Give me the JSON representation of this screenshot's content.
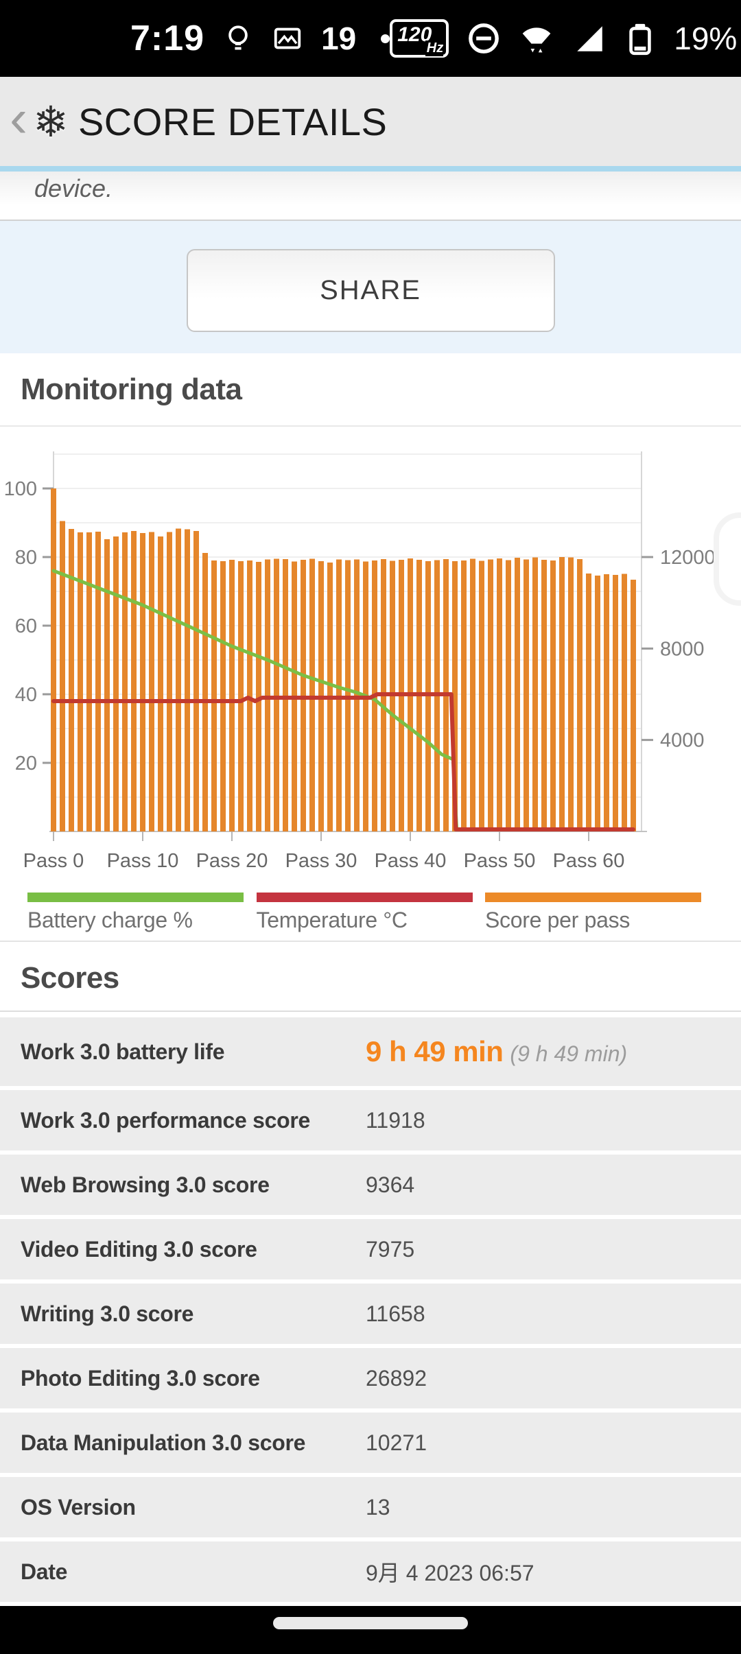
{
  "status_bar": {
    "time": "7:19",
    "notification_count": "19",
    "battery_percent": "19%",
    "refresh_rate": "120",
    "refresh_rate_unit": "Hz",
    "left_icons": [
      "lightbulb-icon",
      "photo-icon",
      "more-notifications-dot"
    ],
    "right_icons": [
      "refresh-rate-badge",
      "do-not-disturb-icon",
      "wifi-icon",
      "cellular-signal-icon",
      "battery-icon"
    ]
  },
  "header": {
    "back_glyph": "‹",
    "logo_glyph": "❄",
    "title": "SCORE DETAILS"
  },
  "intro": {
    "partial_text": "device."
  },
  "share": {
    "label": "SHARE"
  },
  "monitoring": {
    "title": "Monitoring data"
  },
  "chart_data": {
    "type": "bar",
    "title": "Monitoring data",
    "x_tick_labels": [
      "Pass 0",
      "Pass 10",
      "Pass 20",
      "Pass 30",
      "Pass 40",
      "Pass 50",
      "Pass 60"
    ],
    "left_axis": {
      "ticks": [
        20,
        40,
        60,
        80,
        100
      ],
      "range": [
        0,
        110
      ],
      "unit": "%  /  °C"
    },
    "right_axis": {
      "ticks": [
        4000,
        8000,
        12000
      ],
      "score_per_left_unit": 150
    },
    "grid": true,
    "legend_position": "bottom",
    "series": [
      {
        "name": "Score per pass",
        "type": "bar",
        "color": "#E5862B",
        "values": [
          15000,
          13575,
          13230,
          13080,
          13080,
          13110,
          12780,
          12900,
          13080,
          13140,
          13050,
          13095,
          12900,
          13095,
          13245,
          13215,
          13140,
          12180,
          11850,
          11820,
          11880,
          11820,
          11850,
          11790,
          11895,
          11925,
          11910,
          11805,
          11880,
          11925,
          11820,
          11760,
          11895,
          11865,
          11895,
          11805,
          11850,
          11910,
          11835,
          11880,
          11940,
          11880,
          11820,
          11865,
          11910,
          11820,
          11850,
          11925,
          11835,
          11895,
          11940,
          11865,
          11970,
          11895,
          11985,
          11880,
          11850,
          12000,
          11985,
          11910,
          11280,
          11190,
          11250,
          11220,
          11265,
          11010
        ]
      },
      {
        "name": "Battery charge %",
        "type": "line",
        "color": "#7CBF45",
        "points": [
          [
            0,
            76
          ],
          [
            5,
            71
          ],
          [
            10,
            66
          ],
          [
            15,
            60
          ],
          [
            20,
            54
          ],
          [
            24,
            50
          ],
          [
            28,
            45.5
          ],
          [
            32,
            42
          ],
          [
            34,
            40.5
          ],
          [
            36,
            38.5
          ],
          [
            38,
            34
          ],
          [
            40,
            30
          ],
          [
            42,
            26
          ],
          [
            43.5,
            22.5
          ],
          [
            44.8,
            21
          ],
          [
            45.2,
            0.6
          ],
          [
            65,
            0.6
          ]
        ]
      },
      {
        "name": "Temperature °C",
        "type": "line",
        "color": "#C23A2F",
        "points": [
          [
            0,
            38
          ],
          [
            21,
            38
          ],
          [
            21.8,
            39
          ],
          [
            22.6,
            38
          ],
          [
            23.4,
            39
          ],
          [
            35.5,
            39
          ],
          [
            36.3,
            40
          ],
          [
            44.6,
            40
          ],
          [
            45.1,
            0.6
          ],
          [
            65,
            0.6
          ]
        ]
      }
    ],
    "legend": [
      {
        "label": "Battery charge %",
        "color": "#79BE44"
      },
      {
        "label": "Temperature °C",
        "color": "#C4343F"
      },
      {
        "label": "Score per pass",
        "color": "#EC8A28"
      }
    ]
  },
  "scores": {
    "title": "Scores",
    "rows": [
      {
        "label": "Work 3.0 battery life",
        "value": "9 h 49 min",
        "value_note": "(9 h 49 min)"
      },
      {
        "label": "Work 3.0 performance score",
        "value": "11918"
      },
      {
        "label": "Web Browsing 3.0 score",
        "value": "9364"
      },
      {
        "label": "Video Editing 3.0 score",
        "value": "7975"
      },
      {
        "label": "Writing 3.0 score",
        "value": "11658"
      },
      {
        "label": "Photo Editing 3.0 score",
        "value": "26892"
      },
      {
        "label": "Data Manipulation 3.0 score",
        "value": "10271"
      },
      {
        "label": "OS Version",
        "value": "13"
      },
      {
        "label": "Date",
        "value": "9月 4 2023 06:57"
      }
    ]
  }
}
